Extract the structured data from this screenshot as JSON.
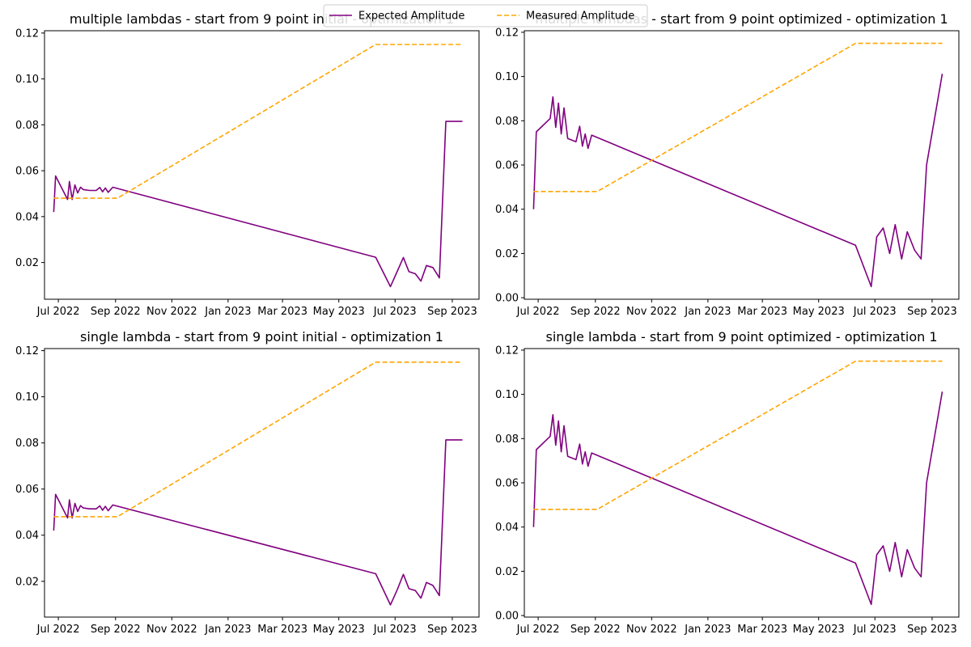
{
  "legend": {
    "entries": [
      {
        "label": "Expected Amplitude",
        "color": "#800080",
        "dash": "solid"
      },
      {
        "label": "Measured Amplitude",
        "color": "#FFA500",
        "dash": "dashed"
      }
    ],
    "placement": "top-center"
  },
  "chart_data": [
    {
      "type": "line",
      "title": "multiple lambdas - start from 9 point initial - optimization 1",
      "xlabel": "",
      "ylabel": "",
      "xlim": [
        "2022-06-16",
        "2023-09-30"
      ],
      "ylim": [
        0.004,
        0.121
      ],
      "yticks": [
        0.02,
        0.04,
        0.06,
        0.08,
        0.1,
        0.12
      ],
      "ytick_labels": [
        "0.02",
        "0.04",
        "0.06",
        "0.08",
        "0.10",
        "0.12"
      ],
      "xticks": [
        "2022-07-01",
        "2022-09-01",
        "2022-11-01",
        "2023-01-01",
        "2023-03-01",
        "2023-05-01",
        "2023-07-01",
        "2023-09-01"
      ],
      "xtick_labels": [
        "Jul 2022",
        "Sep 2022",
        "Nov 2022",
        "Jan 2023",
        "Mar 2023",
        "May 2023",
        "Jul 2023",
        "Sep 2023"
      ],
      "series": [
        {
          "name": "Expected Amplitude",
          "color": "#800080",
          "dash": "solid",
          "x": [
            "2022-06-26",
            "2022-06-28",
            "2022-07-11",
            "2022-07-13",
            "2022-07-16",
            "2022-07-19",
            "2022-07-22",
            "2022-07-25",
            "2022-07-28",
            "2022-08-04",
            "2022-08-11",
            "2022-08-15",
            "2022-08-18",
            "2022-08-21",
            "2022-08-24",
            "2022-08-29",
            "2023-06-10",
            "2023-06-26",
            "2023-07-03",
            "2023-07-10",
            "2023-07-16",
            "2023-07-23",
            "2023-07-29",
            "2023-08-04",
            "2023-08-11",
            "2023-08-18",
            "2023-08-25",
            "2023-09-12"
          ],
          "y": [
            0.042,
            0.0577,
            0.0475,
            0.0553,
            0.0475,
            0.0538,
            0.0503,
            0.0528,
            0.0518,
            0.0514,
            0.0514,
            0.0527,
            0.0508,
            0.0525,
            0.0506,
            0.0528,
            0.0223,
            0.0095,
            0.0158,
            0.0222,
            0.016,
            0.0151,
            0.0119,
            0.0187,
            0.0178,
            0.0133,
            0.0815,
            0.0815
          ]
        },
        {
          "name": "Measured Amplitude",
          "color": "#FFA500",
          "dash": "dashed",
          "x": [
            "2022-06-26",
            "2022-09-03",
            "2023-06-10",
            "2023-09-12"
          ],
          "y": [
            0.048,
            0.048,
            0.115,
            0.115
          ]
        }
      ]
    },
    {
      "type": "line",
      "title": "multiple lambdas - start from 9 point optimized - optimization 1",
      "xlabel": "",
      "ylabel": "",
      "xlim": [
        "2022-06-16",
        "2023-09-30"
      ],
      "ylim": [
        -0.0007,
        0.1207
      ],
      "yticks": [
        0.0,
        0.02,
        0.04,
        0.06,
        0.08,
        0.1,
        0.12
      ],
      "ytick_labels": [
        "0.00",
        "0.02",
        "0.04",
        "0.06",
        "0.08",
        "0.10",
        "0.12"
      ],
      "xticks": [
        "2022-07-01",
        "2022-09-01",
        "2022-11-01",
        "2023-01-01",
        "2023-03-01",
        "2023-05-01",
        "2023-07-01",
        "2023-09-01"
      ],
      "xtick_labels": [
        "Jul 2022",
        "Sep 2022",
        "Nov 2022",
        "Jan 2023",
        "Mar 2023",
        "May 2023",
        "Jul 2023",
        "Sep 2023"
      ],
      "series": [
        {
          "name": "Expected Amplitude",
          "color": "#800080",
          "dash": "solid",
          "x": [
            "2022-06-26",
            "2022-06-29",
            "2022-07-14",
            "2022-07-17",
            "2022-07-20",
            "2022-07-23",
            "2022-07-26",
            "2022-07-29",
            "2022-08-02",
            "2022-08-11",
            "2022-08-15",
            "2022-08-18",
            "2022-08-21",
            "2022-08-24",
            "2022-08-28",
            "2023-06-10",
            "2023-06-27",
            "2023-07-03",
            "2023-07-10",
            "2023-07-17",
            "2023-07-23",
            "2023-07-30",
            "2023-08-05",
            "2023-08-13",
            "2023-08-20",
            "2023-08-26",
            "2023-09-12"
          ],
          "y": [
            0.04,
            0.075,
            0.081,
            0.0908,
            0.077,
            0.088,
            0.074,
            0.0858,
            0.072,
            0.0705,
            0.0775,
            0.0685,
            0.074,
            0.0675,
            0.0735,
            0.0237,
            0.005,
            0.0275,
            0.0315,
            0.02,
            0.033,
            0.0175,
            0.0298,
            0.0215,
            0.0175,
            0.06,
            0.1012
          ]
        },
        {
          "name": "Measured Amplitude",
          "color": "#FFA500",
          "dash": "dashed",
          "x": [
            "2022-06-26",
            "2022-09-03",
            "2023-06-10",
            "2023-09-12"
          ],
          "y": [
            0.048,
            0.048,
            0.115,
            0.115
          ]
        }
      ]
    },
    {
      "type": "line",
      "title": "single lambda - start from 9 point initial - optimization 1",
      "xlabel": "",
      "ylabel": "",
      "xlim": [
        "2022-06-16",
        "2023-09-30"
      ],
      "ylim": [
        0.0045,
        0.1209
      ],
      "yticks": [
        0.02,
        0.04,
        0.06,
        0.08,
        0.1,
        0.12
      ],
      "ytick_labels": [
        "0.02",
        "0.04",
        "0.06",
        "0.08",
        "0.10",
        "0.12"
      ],
      "xticks": [
        "2022-07-01",
        "2022-09-01",
        "2022-11-01",
        "2023-01-01",
        "2023-03-01",
        "2023-05-01",
        "2023-07-01",
        "2023-09-01"
      ],
      "xtick_labels": [
        "Jul 2022",
        "Sep 2022",
        "Nov 2022",
        "Jan 2023",
        "Mar 2023",
        "May 2023",
        "Jul 2023",
        "Sep 2023"
      ],
      "series": [
        {
          "name": "Expected Amplitude",
          "color": "#800080",
          "dash": "solid",
          "x": [
            "2022-06-26",
            "2022-06-28",
            "2022-07-11",
            "2022-07-13",
            "2022-07-16",
            "2022-07-19",
            "2022-07-22",
            "2022-07-25",
            "2022-07-28",
            "2022-08-04",
            "2022-08-11",
            "2022-08-15",
            "2022-08-18",
            "2022-08-21",
            "2022-08-24",
            "2022-08-29",
            "2023-06-10",
            "2023-06-26",
            "2023-07-03",
            "2023-07-10",
            "2023-07-16",
            "2023-07-23",
            "2023-07-29",
            "2023-08-04",
            "2023-08-11",
            "2023-08-18",
            "2023-08-25",
            "2023-09-12"
          ],
          "y": [
            0.042,
            0.0577,
            0.0475,
            0.0553,
            0.0475,
            0.0538,
            0.0503,
            0.0528,
            0.0518,
            0.0514,
            0.0514,
            0.0527,
            0.0508,
            0.0525,
            0.0506,
            0.0531,
            0.0233,
            0.0098,
            0.016,
            0.023,
            0.0168,
            0.016,
            0.0127,
            0.0195,
            0.0182,
            0.0138,
            0.0813,
            0.0813
          ]
        },
        {
          "name": "Measured Amplitude",
          "color": "#FFA500",
          "dash": "dashed",
          "x": [
            "2022-06-26",
            "2022-09-03",
            "2023-06-10",
            "2023-09-12"
          ],
          "y": [
            0.048,
            0.048,
            0.115,
            0.115
          ]
        }
      ]
    },
    {
      "type": "line",
      "title": "single lambda - start from 9 point optimized - optimization 1",
      "xlabel": "",
      "ylabel": "",
      "xlim": [
        "2022-06-16",
        "2023-09-30"
      ],
      "ylim": [
        -0.0007,
        0.1207
      ],
      "yticks": [
        0.0,
        0.02,
        0.04,
        0.06,
        0.08,
        0.1,
        0.12
      ],
      "ytick_labels": [
        "0.00",
        "0.02",
        "0.04",
        "0.06",
        "0.08",
        "0.10",
        "0.12"
      ],
      "xticks": [
        "2022-07-01",
        "2022-09-01",
        "2022-11-01",
        "2023-01-01",
        "2023-03-01",
        "2023-05-01",
        "2023-07-01",
        "2023-09-01"
      ],
      "xtick_labels": [
        "Jul 2022",
        "Sep 2022",
        "Nov 2022",
        "Jan 2023",
        "Mar 2023",
        "May 2023",
        "Jul 2023",
        "Sep 2023"
      ],
      "series": [
        {
          "name": "Expected Amplitude",
          "color": "#800080",
          "dash": "solid",
          "x": [
            "2022-06-26",
            "2022-06-29",
            "2022-07-14",
            "2022-07-17",
            "2022-07-20",
            "2022-07-23",
            "2022-07-26",
            "2022-07-29",
            "2022-08-02",
            "2022-08-11",
            "2022-08-15",
            "2022-08-18",
            "2022-08-21",
            "2022-08-24",
            "2022-08-28",
            "2023-06-10",
            "2023-06-27",
            "2023-07-03",
            "2023-07-10",
            "2023-07-17",
            "2023-07-23",
            "2023-07-30",
            "2023-08-05",
            "2023-08-13",
            "2023-08-20",
            "2023-08-26",
            "2023-09-12"
          ],
          "y": [
            0.04,
            0.075,
            0.081,
            0.0908,
            0.077,
            0.088,
            0.074,
            0.0858,
            0.072,
            0.0705,
            0.0775,
            0.0685,
            0.074,
            0.0675,
            0.0735,
            0.0237,
            0.005,
            0.0275,
            0.0315,
            0.02,
            0.033,
            0.0175,
            0.0298,
            0.0215,
            0.0175,
            0.06,
            0.1012
          ]
        },
        {
          "name": "Measured Amplitude",
          "color": "#FFA500",
          "dash": "dashed",
          "x": [
            "2022-06-26",
            "2022-09-03",
            "2023-06-10",
            "2023-09-12"
          ],
          "y": [
            0.048,
            0.048,
            0.115,
            0.115
          ]
        }
      ]
    }
  ]
}
